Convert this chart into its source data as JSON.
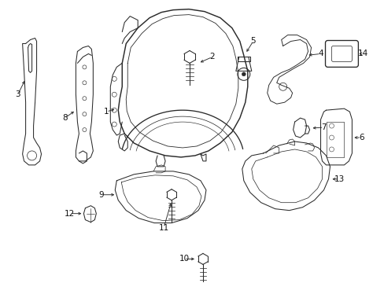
{
  "bg_color": "#ffffff",
  "line_color": "#2a2a2a",
  "label_color": "#111111",
  "figsize": [
    4.89,
    3.6
  ],
  "dpi": 100,
  "label_fontsize": 7.5,
  "lw": 0.75
}
